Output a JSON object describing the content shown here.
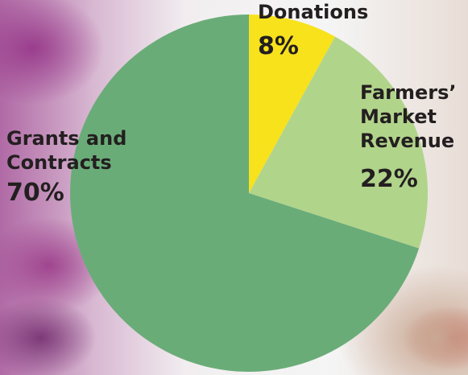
{
  "chart_data": {
    "type": "pie",
    "categories": [
      "Donations",
      "Farmers’ Market Revenue",
      "Grants and Contracts"
    ],
    "values": [
      8,
      22,
      70
    ],
    "value_labels": [
      "8%",
      "22%",
      "70%"
    ],
    "colors": [
      "#f8e21c",
      "#b1d48b",
      "#6aac78"
    ]
  }
}
